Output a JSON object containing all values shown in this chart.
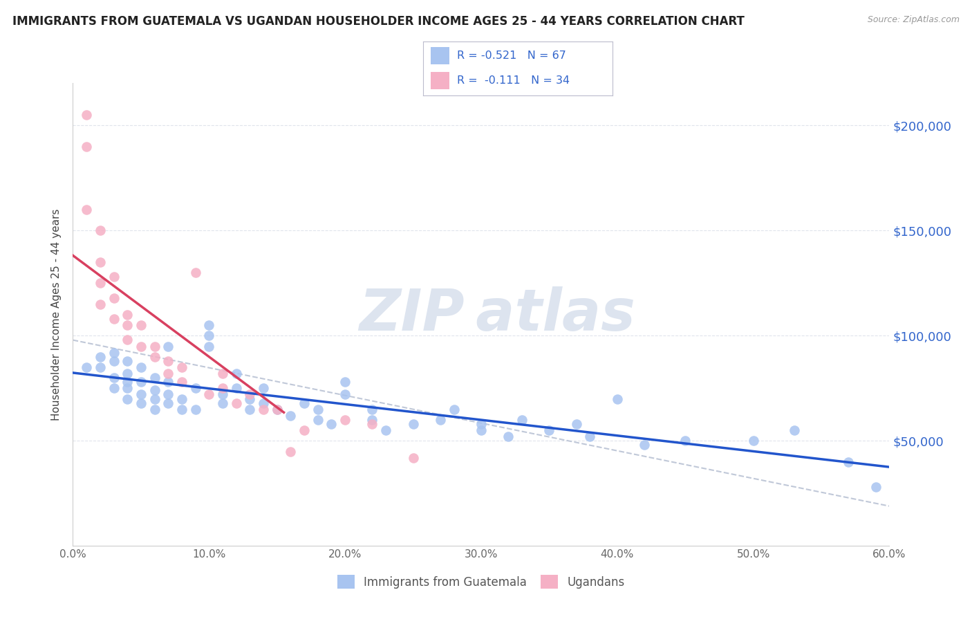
{
  "title": "IMMIGRANTS FROM GUATEMALA VS UGANDAN HOUSEHOLDER INCOME AGES 25 - 44 YEARS CORRELATION CHART",
  "source": "Source: ZipAtlas.com",
  "ylabel": "Householder Income Ages 25 - 44 years",
  "x_min": 0.0,
  "x_max": 0.6,
  "y_min": 0,
  "y_max": 220000,
  "x_tick_labels": [
    "0.0%",
    "10.0%",
    "20.0%",
    "30.0%",
    "40.0%",
    "50.0%",
    "60.0%"
  ],
  "x_tick_vals": [
    0.0,
    0.1,
    0.2,
    0.3,
    0.4,
    0.5,
    0.6
  ],
  "y_tick_labels": [
    "$50,000",
    "$100,000",
    "$150,000",
    "$200,000"
  ],
  "y_tick_vals": [
    50000,
    100000,
    150000,
    200000
  ],
  "guatemala_color": "#a8c4f0",
  "ugandan_color": "#f5b0c5",
  "guatemala_line_color": "#2255cc",
  "ugandan_line_color": "#d84060",
  "regression_line_color": "#c0c8d8",
  "legend_r1": "-0.521",
  "legend_n1": "67",
  "legend_r2": "-0.111",
  "legend_n2": "34",
  "guatemala_x": [
    0.01,
    0.02,
    0.02,
    0.03,
    0.03,
    0.03,
    0.03,
    0.04,
    0.04,
    0.04,
    0.04,
    0.04,
    0.05,
    0.05,
    0.05,
    0.05,
    0.06,
    0.06,
    0.06,
    0.06,
    0.07,
    0.07,
    0.07,
    0.07,
    0.08,
    0.08,
    0.09,
    0.09,
    0.1,
    0.1,
    0.1,
    0.11,
    0.11,
    0.12,
    0.12,
    0.13,
    0.13,
    0.14,
    0.14,
    0.15,
    0.16,
    0.17,
    0.18,
    0.18,
    0.19,
    0.2,
    0.2,
    0.22,
    0.22,
    0.23,
    0.25,
    0.27,
    0.28,
    0.3,
    0.3,
    0.32,
    0.33,
    0.35,
    0.37,
    0.38,
    0.4,
    0.42,
    0.45,
    0.5,
    0.53,
    0.57,
    0.59
  ],
  "guatemala_y": [
    85000,
    85000,
    90000,
    75000,
    80000,
    88000,
    92000,
    70000,
    75000,
    78000,
    82000,
    88000,
    68000,
    72000,
    78000,
    85000,
    65000,
    70000,
    74000,
    80000,
    68000,
    72000,
    78000,
    95000,
    65000,
    70000,
    65000,
    75000,
    95000,
    100000,
    105000,
    68000,
    72000,
    75000,
    82000,
    65000,
    70000,
    68000,
    75000,
    65000,
    62000,
    68000,
    60000,
    65000,
    58000,
    72000,
    78000,
    60000,
    65000,
    55000,
    58000,
    60000,
    65000,
    55000,
    58000,
    52000,
    60000,
    55000,
    58000,
    52000,
    70000,
    48000,
    50000,
    50000,
    55000,
    40000,
    28000
  ],
  "ugandan_x": [
    0.01,
    0.01,
    0.01,
    0.02,
    0.02,
    0.02,
    0.02,
    0.03,
    0.03,
    0.03,
    0.04,
    0.04,
    0.04,
    0.05,
    0.05,
    0.06,
    0.06,
    0.07,
    0.07,
    0.08,
    0.08,
    0.09,
    0.1,
    0.11,
    0.11,
    0.12,
    0.13,
    0.14,
    0.15,
    0.16,
    0.17,
    0.2,
    0.22,
    0.25
  ],
  "ugandan_y": [
    205000,
    190000,
    160000,
    150000,
    135000,
    125000,
    115000,
    128000,
    118000,
    108000,
    105000,
    98000,
    110000,
    105000,
    95000,
    95000,
    90000,
    88000,
    82000,
    85000,
    78000,
    130000,
    72000,
    82000,
    75000,
    68000,
    72000,
    65000,
    65000,
    45000,
    55000,
    60000,
    58000,
    42000
  ],
  "watermark_color": "#dde4ef",
  "title_color": "#222222",
  "source_color": "#999999",
  "axis_label_color": "#444444",
  "tick_label_color": "#666666",
  "right_tick_color": "#3366cc",
  "grid_color": "#e0e4ec",
  "spine_color": "#cccccc"
}
